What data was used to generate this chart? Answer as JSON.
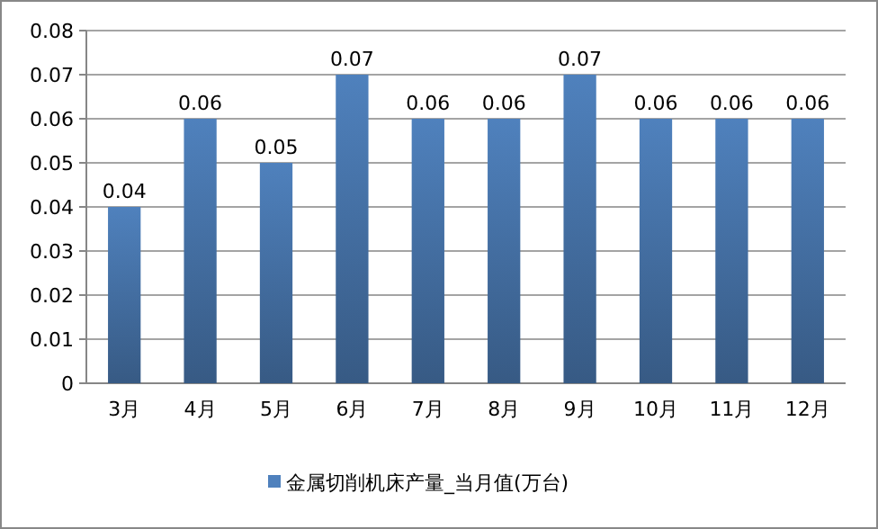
{
  "chart_data": {
    "type": "bar",
    "categories": [
      "3月",
      "4月",
      "5月",
      "6月",
      "7月",
      "8月",
      "9月",
      "10月",
      "11月",
      "12月"
    ],
    "series": [
      {
        "name": "金属切削机床产量_当月值(万台)",
        "color": "#4f81bd",
        "values": [
          0.04,
          0.06,
          0.05,
          0.07,
          0.06,
          0.06,
          0.07,
          0.06,
          0.06,
          0.06
        ]
      }
    ],
    "ylim": [
      0,
      0.08
    ],
    "yticks": [
      0,
      0.01,
      0.02,
      0.03,
      0.04,
      0.05,
      0.06,
      0.07,
      0.08
    ],
    "grid": "y",
    "legend": "bottom",
    "data_labels": true
  }
}
